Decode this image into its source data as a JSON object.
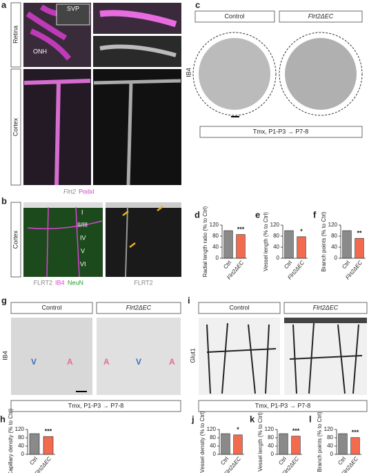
{
  "panels": {
    "a": {
      "label": "a",
      "rows": [
        "Retina",
        "Cortex"
      ],
      "insets": [
        "SVP",
        "ONH"
      ],
      "legend": [
        "Flrt2",
        "Podxl"
      ]
    },
    "b": {
      "label": "b",
      "row": "Cortex",
      "layers": [
        "I",
        "II/III",
        "IV",
        "V",
        "VI"
      ],
      "legend": [
        "FLRT2",
        "IB4",
        "NeuN"
      ],
      "right_legend": "FLRT2"
    },
    "c": {
      "label": "c",
      "headers": [
        "Control",
        "Flrt2ΔEC"
      ],
      "stain": "IB4",
      "footer": "Tmx, P1-P3 → P7-8"
    },
    "g": {
      "label": "g",
      "headers": [
        "Control",
        "Flrt2ΔEC"
      ],
      "stain": "IB4",
      "vessels": [
        "V",
        "A",
        "A",
        "V",
        "A"
      ],
      "footer": "Tmx, P1-P3 → P7-8"
    },
    "i": {
      "label": "i",
      "headers": [
        "Control",
        "Flrt2ΔEC"
      ],
      "stain": "Glut1",
      "footer": "Tmx, P1-P3 → P7-8"
    }
  },
  "chart_data": [
    {
      "type": "bar",
      "panel": "d",
      "ylabel": "Radial length ratio (% to Ctrl)",
      "categories": [
        "Ctrl",
        "Flrt2ΔEC"
      ],
      "values": [
        100,
        86
      ],
      "colors": [
        "#8a8a8a",
        "#f26b4f"
      ],
      "annotation": "***",
      "ylim": [
        0,
        120
      ],
      "yticks": [
        0,
        40,
        80,
        120
      ]
    },
    {
      "type": "bar",
      "panel": "e",
      "ylabel": "Vessel length (% to Ctrl)",
      "categories": [
        "Ctrl",
        "Flrt2ΔEC"
      ],
      "values": [
        100,
        78
      ],
      "colors": [
        "#8a8a8a",
        "#f26b4f"
      ],
      "annotation": "*",
      "ylim": [
        0,
        120
      ],
      "yticks": [
        0,
        40,
        80,
        120
      ]
    },
    {
      "type": "bar",
      "panel": "f",
      "ylabel": "Branch points (% to Ctrl)",
      "categories": [
        "Ctrl",
        "Flrt2ΔEC"
      ],
      "values": [
        100,
        72
      ],
      "colors": [
        "#8a8a8a",
        "#f26b4f"
      ],
      "annotation": "**",
      "ylim": [
        0,
        120
      ],
      "yticks": [
        0,
        40,
        80,
        120
      ]
    },
    {
      "type": "bar",
      "panel": "h",
      "ylabel": "Capillary density (% to Ctrl)",
      "categories": [
        "Ctrl",
        "Flrt2ΔEC"
      ],
      "values": [
        100,
        86
      ],
      "colors": [
        "#8a8a8a",
        "#f26b4f"
      ],
      "annotation": "***",
      "ylim": [
        0,
        120
      ],
      "yticks": [
        0,
        40,
        80,
        120
      ]
    },
    {
      "type": "bar",
      "panel": "j",
      "ylabel": "Vessel density (% to Ctrl)",
      "categories": [
        "Ctrl",
        "Flrt2ΔEC"
      ],
      "values": [
        100,
        94
      ],
      "colors": [
        "#8a8a8a",
        "#f26b4f"
      ],
      "annotation": "*",
      "ylim": [
        0,
        120
      ],
      "yticks": [
        0,
        40,
        80,
        120
      ]
    },
    {
      "type": "bar",
      "panel": "k",
      "ylabel": "Vessel length (% to Ctrl)",
      "categories": [
        "Ctrl",
        "Flrt2ΔEC"
      ],
      "values": [
        100,
        88
      ],
      "colors": [
        "#8a8a8a",
        "#f26b4f"
      ],
      "annotation": "***",
      "ylim": [
        0,
        120
      ],
      "yticks": [
        0,
        40,
        80,
        120
      ]
    },
    {
      "type": "bar",
      "panel": "l",
      "ylabel": "Branch points (% to Ctrl)",
      "categories": [
        "Ctrl",
        "Flrt2ΔEC"
      ],
      "values": [
        100,
        81
      ],
      "colors": [
        "#8a8a8a",
        "#f26b4f"
      ],
      "annotation": "***",
      "ylim": [
        0,
        120
      ],
      "yticks": [
        0,
        40,
        80,
        120
      ]
    }
  ]
}
